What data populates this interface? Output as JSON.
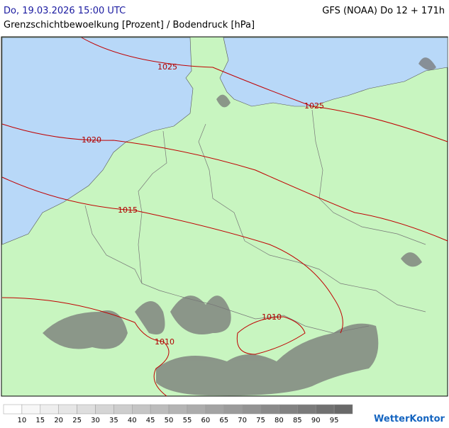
{
  "header": {
    "date": "Do, 19.03.2026 15:00 UTC",
    "model": "GFS (NOAA) Do 12 + 171h",
    "subtitle": "Grenzschichtbewoelkung [Prozent] / Bodendruck [hPa]"
  },
  "map": {
    "isobar_labels": [
      1025,
      1025,
      1020,
      1015,
      1010,
      1010
    ]
  },
  "legend": {
    "ticks": [
      10,
      15,
      20,
      25,
      30,
      35,
      40,
      45,
      50,
      55,
      60,
      65,
      70,
      75,
      80,
      85,
      90,
      95
    ]
  },
  "brand": "WetterKontor"
}
